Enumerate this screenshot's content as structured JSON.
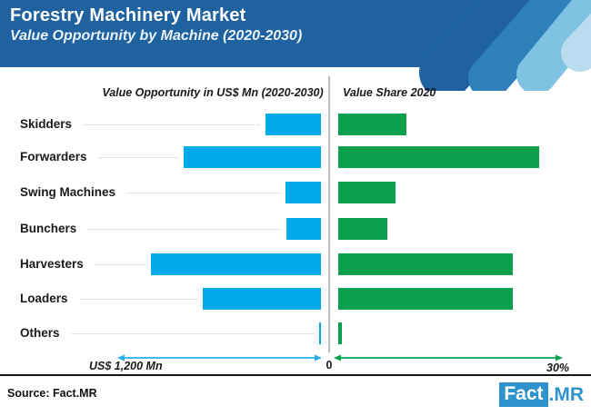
{
  "header": {
    "title": "Forestry Machinery Market",
    "subtitle": "Value Opportunity by Machine (2020-2030)",
    "background_color": "#1f629f",
    "stripe_colors": [
      "#2e7fba",
      "#7fc2e2",
      "#b9ddee"
    ]
  },
  "chart_data": {
    "type": "bar",
    "layout": "diverging-dual-axis",
    "categories": [
      "Skidders",
      "Forwarders",
      "Swing Machines",
      "Bunchers",
      "Harvesters",
      "Loaders",
      "Others"
    ],
    "series": [
      {
        "name": "Value Opportunity in US$ Mn (2020-2030)",
        "side": "left",
        "color": "#00a9e8",
        "axis_max": 1200,
        "values": [
          330,
          810,
          210,
          205,
          1005,
          700,
          10
        ]
      },
      {
        "name": "Value Share 2020",
        "side": "right",
        "color": "#0da04c",
        "axis_max": 30,
        "values": [
          9,
          26.5,
          7.5,
          6.5,
          23,
          23,
          0.5
        ]
      }
    ],
    "left_axis": {
      "max_label": "US$ 1,200 Mn",
      "zero_label": "0"
    },
    "right_axis": {
      "max_label": "30%"
    },
    "grid": "dotted-leader-lines",
    "legend_position": "column-headers"
  },
  "footer": {
    "source": "Source: Fact.MR",
    "logo_fact": "Fact",
    "logo_mr": ".MR"
  }
}
